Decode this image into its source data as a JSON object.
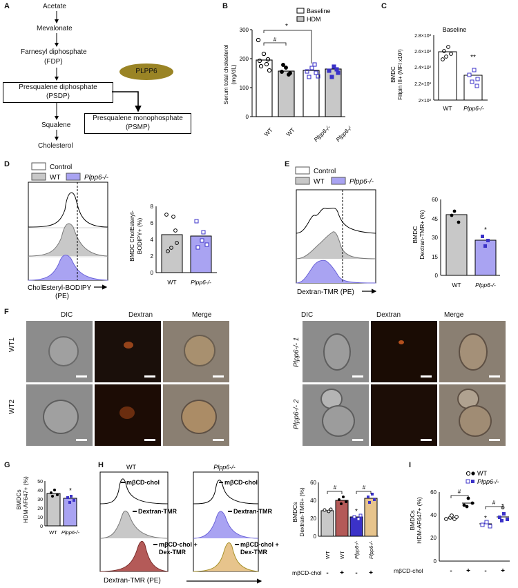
{
  "panels": {
    "A": "A",
    "B": "B",
    "C": "C",
    "D": "D",
    "E": "E",
    "F": "F",
    "G": "G",
    "H": "H",
    "I": "I"
  },
  "pathway": {
    "steps": [
      "Acetate",
      "Mevalonate",
      "Farnesyl diphosphate",
      "(FDP)",
      "Presqualene diphosphate",
      "(PSDP)",
      "Squalene",
      "Cholesterol"
    ],
    "enzyme": "PLPP6",
    "product_line1": "Presqualene monophosphate",
    "product_line2": "(PSMP)"
  },
  "panel_b": {
    "ylabel_line1": "Serum total cholesterol",
    "ylabel_line2": "(mg/dL)",
    "yticks": [
      "0",
      "100",
      "200",
      "300"
    ],
    "legend": [
      "Baseline",
      "HDM"
    ],
    "sig_hash": "#",
    "sig_star": "*",
    "xlabels": [
      "WT",
      "WT",
      "Plpp6-/-",
      "Plpp6-/-"
    ]
  },
  "panel_c": {
    "title": "Baseline",
    "ylabel_line1": "BMDC",
    "ylabel_line2": "Filipin III+ (MFI x10³)",
    "yticks": [
      "2×10³",
      "2.2×10³",
      "2.4×10³",
      "2.6×10³",
      "2.8×10³"
    ],
    "xlabels": [
      "WT",
      "Plpp6-/-"
    ],
    "sig": "**"
  },
  "panel_d": {
    "legend": [
      "Control",
      "WT",
      "Plpp6-/-"
    ],
    "xaxis_line1": "CholEsteryl-BODIPY",
    "xaxis_line2": "(PE)",
    "bar_ylabel_line1": "BMDC CholEsteryl-",
    "bar_ylabel_line2": "BODIPY+ (%)",
    "yticks": [
      "0",
      "2",
      "4",
      "6",
      "8"
    ],
    "xlabels": [
      "WT",
      "Plpp6-/-"
    ]
  },
  "panel_e": {
    "legend": [
      "Control",
      "WT",
      "Plpp6-/-"
    ],
    "xaxis": "Dextran-TMR (PE)",
    "bar_ylabel_line1": "BMDC",
    "bar_ylabel_line2": "Dextran-TMR+ (%)",
    "yticks": [
      "0",
      "15",
      "30",
      "45",
      "60"
    ],
    "xlabels": [
      "WT",
      "Plpp6-/-"
    ],
    "sig": "*"
  },
  "panel_f": {
    "columns": [
      "DIC",
      "Dextran",
      "Merge"
    ],
    "rows_left": [
      "WT1",
      "WT2"
    ],
    "rows_right": [
      "Plpp6-/- 1",
      "Plpp6-/- 2"
    ]
  },
  "panel_g": {
    "ylabel_line1": "BMDCs",
    "ylabel_line2": "HDM-AF647+ (%)",
    "yticks": [
      "0",
      "10",
      "20",
      "30",
      "40",
      "50"
    ],
    "xlabels": [
      "WT",
      "Plpp6-/-"
    ],
    "sig": "*"
  },
  "panel_h": {
    "titles": [
      "WT",
      "Plpp6-/-"
    ],
    "hist_labels": [
      "mβCD-chol",
      "Dextran-TMR",
      "mβCD-chol +",
      "Dex-TMR"
    ],
    "xaxis": "Dextran-TMR (PE)",
    "bar_ylabel_line1": "BMDCs",
    "bar_ylabel_line2": "Dextran-TMR+ (%)",
    "yticks": [
      "0",
      "20",
      "40",
      "60"
    ],
    "xlabels": [
      "WT",
      "WT",
      "Plpp6-/-",
      "Plpp6-/-"
    ],
    "treat_label": "mβCD-chol",
    "treat": [
      "-",
      "+",
      "-",
      "+"
    ],
    "sig_hash": "#",
    "sig_star": "*"
  },
  "panel_i": {
    "legend": [
      "WT",
      "Plpp6-/-"
    ],
    "ylabel_line1": "BMDCs",
    "ylabel_line2": "HDM-AF647+ (%)",
    "yticks": [
      "0",
      "20",
      "40",
      "60"
    ],
    "treat_label": "mβCD-chol",
    "treat": [
      "-",
      "+",
      "-",
      "+"
    ],
    "sig_hash": "#",
    "sig_star": "*",
    "sig_delta": "δ"
  },
  "colors": {
    "purple": "#a9a3f2",
    "purple_dark": "#3b32c8",
    "grey": "#c8c8c8",
    "red": "#b45a58",
    "tan": "#e7c48c",
    "olive": "#a8922a"
  },
  "chart_data": [
    {
      "type": "bar",
      "panel": "B",
      "categories": [
        "WT",
        "WT",
        "Plpp6-/-",
        "Plpp6-/-"
      ],
      "series": [
        {
          "name": "Baseline",
          "values": [
            196,
            null,
            160,
            null
          ]
        },
        {
          "name": "HDM",
          "values": [
            null,
            158,
            null,
            165
          ]
        }
      ],
      "ylabel": "Serum total cholesterol (mg/dL)",
      "ylim": [
        0,
        300
      ]
    },
    {
      "type": "bar",
      "panel": "C",
      "categories": [
        "WT",
        "Plpp6-/-"
      ],
      "values": [
        2570,
        2280
      ],
      "title": "Baseline",
      "ylim": [
        2000,
        2800
      ]
    },
    {
      "type": "bar",
      "panel": "D",
      "categories": [
        "WT",
        "Plpp6-/-"
      ],
      "values": [
        4.6,
        4.4
      ],
      "ylim": [
        0,
        8
      ]
    },
    {
      "type": "bar",
      "panel": "E",
      "categories": [
        "WT",
        "Plpp6-/-"
      ],
      "values": [
        48,
        28
      ],
      "ylim": [
        0,
        60
      ]
    },
    {
      "type": "bar",
      "panel": "G",
      "categories": [
        "WT",
        "Plpp6-/-"
      ],
      "values": [
        36,
        31
      ],
      "ylim": [
        0,
        50
      ]
    },
    {
      "type": "bar",
      "panel": "H",
      "categories": [
        "WT -",
        "WT +",
        "Plpp6-/- -",
        "Plpp6-/- +"
      ],
      "values": [
        29,
        40,
        22,
        42
      ],
      "ylim": [
        0,
        60
      ]
    },
    {
      "type": "scatter",
      "panel": "I",
      "categories": [
        "WT -",
        "WT +",
        "Plpp6-/- -",
        "Plpp6-/- +"
      ],
      "values": [
        37,
        50,
        32,
        38
      ],
      "ylim": [
        0,
        60
      ]
    }
  ]
}
